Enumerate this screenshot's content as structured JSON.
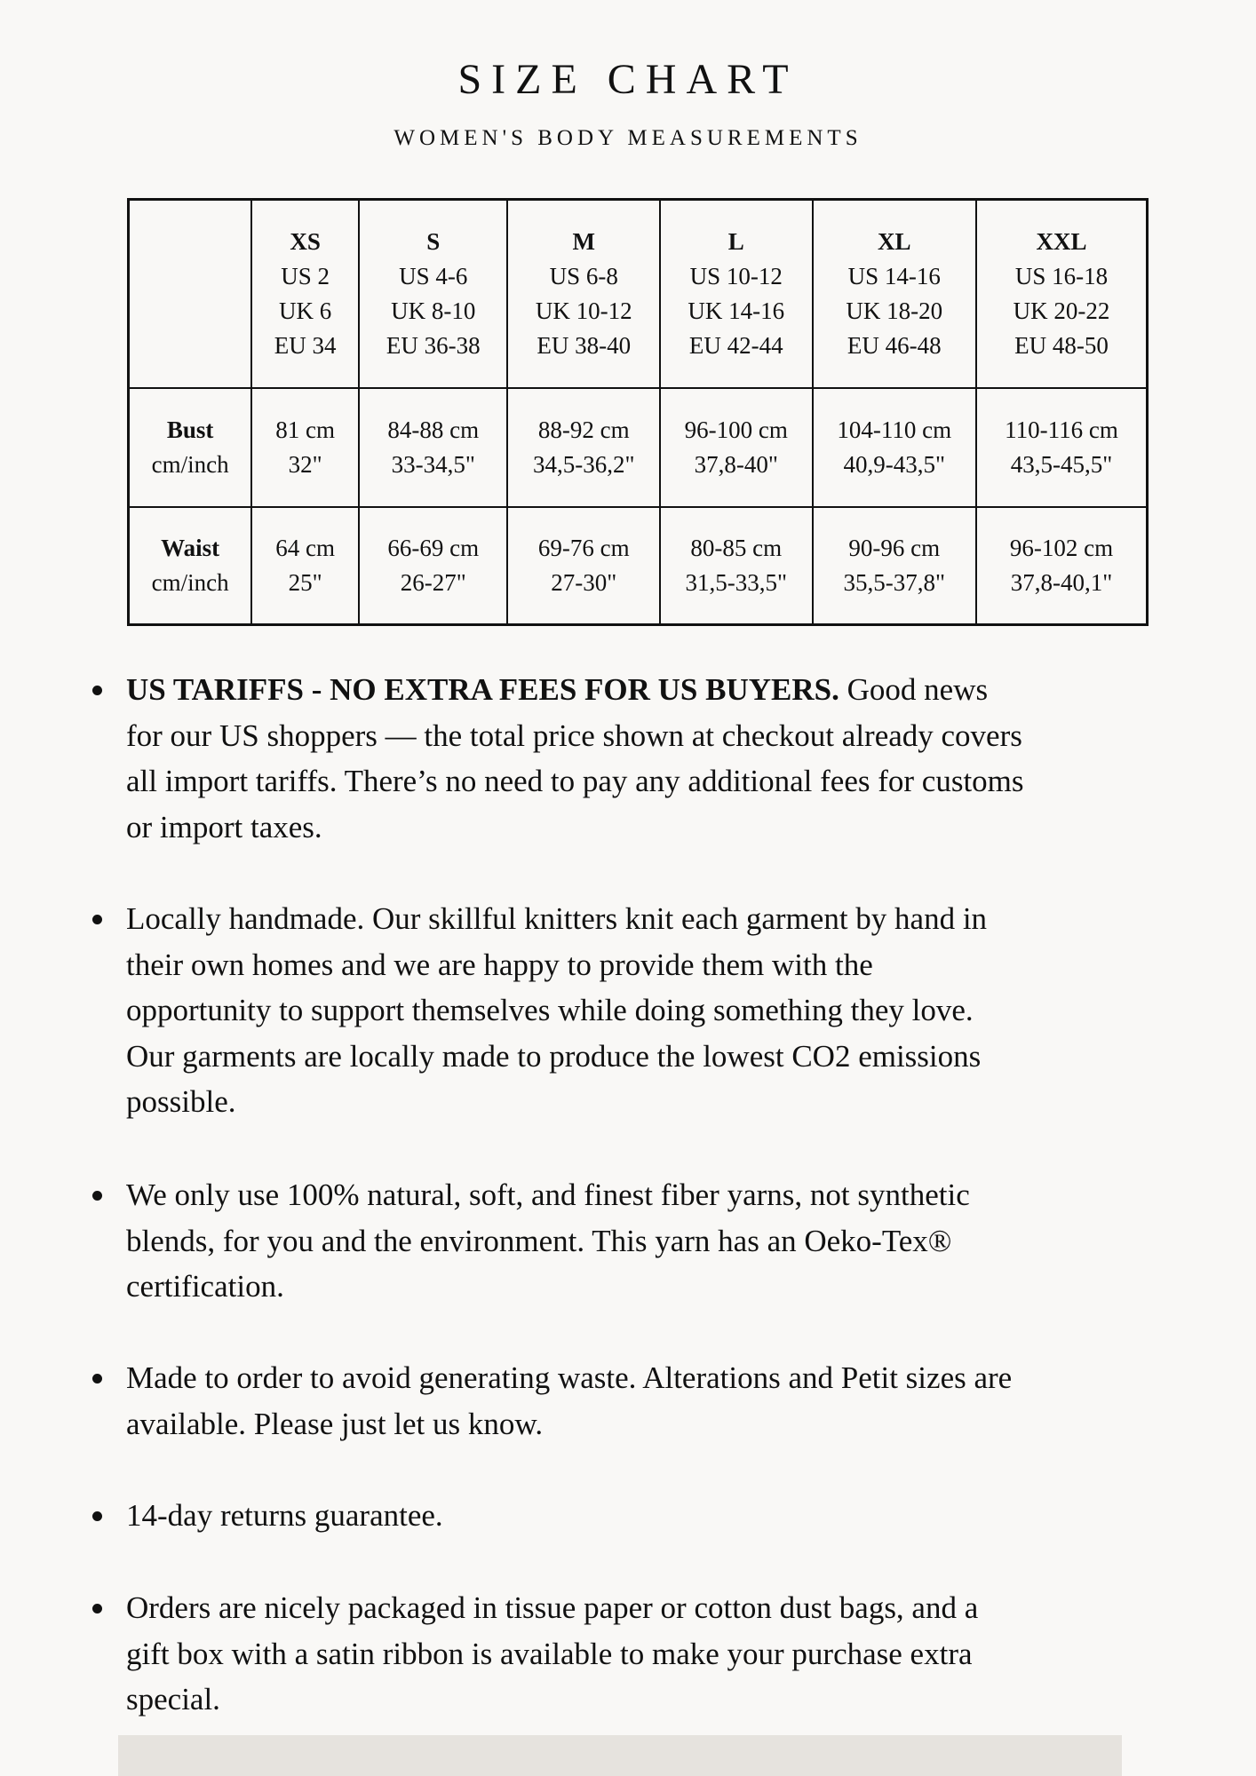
{
  "title": "SIZE CHART",
  "subtitle": "WOMEN'S BODY MEASUREMENTS",
  "table": {
    "sizes": [
      {
        "size": "XS",
        "us": "US 2",
        "uk": "UK 6",
        "eu": "EU 34"
      },
      {
        "size": "S",
        "us": "US 4-6",
        "uk": "UK 8-10",
        "eu": "EU 36-38"
      },
      {
        "size": "M",
        "us": "US 6-8",
        "uk": "UK 10-12",
        "eu": "EU 38-40"
      },
      {
        "size": "L",
        "us": "US 10-12",
        "uk": "UK 14-16",
        "eu": "EU 42-44"
      },
      {
        "size": "XL",
        "us": "US 14-16",
        "uk": "UK 18-20",
        "eu": "EU 46-48"
      },
      {
        "size": "XXL",
        "us": "US 16-18",
        "uk": "UK 20-22",
        "eu": "EU 48-50"
      }
    ],
    "rows": [
      {
        "label": "Bust",
        "unit": "cm/inch",
        "values": [
          [
            "81 cm",
            "32\""
          ],
          [
            "84-88 cm",
            "33-34,5\""
          ],
          [
            "88-92 cm",
            "34,5-36,2\""
          ],
          [
            "96-100 cm",
            "37,8-40\""
          ],
          [
            "104-110 cm",
            "40,9-43,5\""
          ],
          [
            "110-116 cm",
            "43,5-45,5\""
          ]
        ]
      },
      {
        "label": "Waist",
        "unit": "cm/inch",
        "values": [
          [
            "64 cm",
            "25\""
          ],
          [
            "66-69 cm",
            "26-27\""
          ],
          [
            "69-76 cm",
            "27-30\""
          ],
          [
            "80-85 cm",
            "31,5-33,5\""
          ],
          [
            "90-96 cm",
            "35,5-37,8\""
          ],
          [
            "96-102 cm",
            "37,8-40,1\""
          ]
        ]
      }
    ]
  },
  "bullets": [
    {
      "bold": "US TARIFFS - NO EXTRA FEES FOR US BUYERS.",
      "lines": [
        " Good news",
        "for our US shoppers — the total price shown at checkout already covers",
        "all import tariffs. There’s no need to pay any additional fees for customs",
        "or import taxes."
      ]
    },
    {
      "bold": "",
      "lines": [
        "Locally handmade. Our skillful knitters knit each garment by hand in",
        "their own homes and we are happy to provide them with the",
        "opportunity to support themselves while doing something they love.",
        "Our garments are locally made to produce the lowest CO2 emissions",
        "possible."
      ]
    },
    {
      "bold": "",
      "lines": [
        "We only use 100% natural, soft, and finest fiber yarns, not synthetic",
        "blends, for you and the environment. This yarn has an Oeko-Tex®",
        "certification."
      ]
    },
    {
      "bold": "",
      "lines": [
        "Made to order to avoid generating waste. Alterations and Petit sizes are",
        "available. Please just let us know."
      ]
    },
    {
      "bold": "",
      "lines": [
        "14-day returns guarantee."
      ]
    },
    {
      "bold": "",
      "lines": [
        "Orders are nicely packaged in tissue paper or cotton dust bags, and a",
        "gift box with a satin ribbon is available to make your purchase extra",
        "special."
      ]
    }
  ],
  "colors": {
    "background": "#f9f8f6",
    "footer_band": "#e6e3de",
    "text": "#111111"
  }
}
